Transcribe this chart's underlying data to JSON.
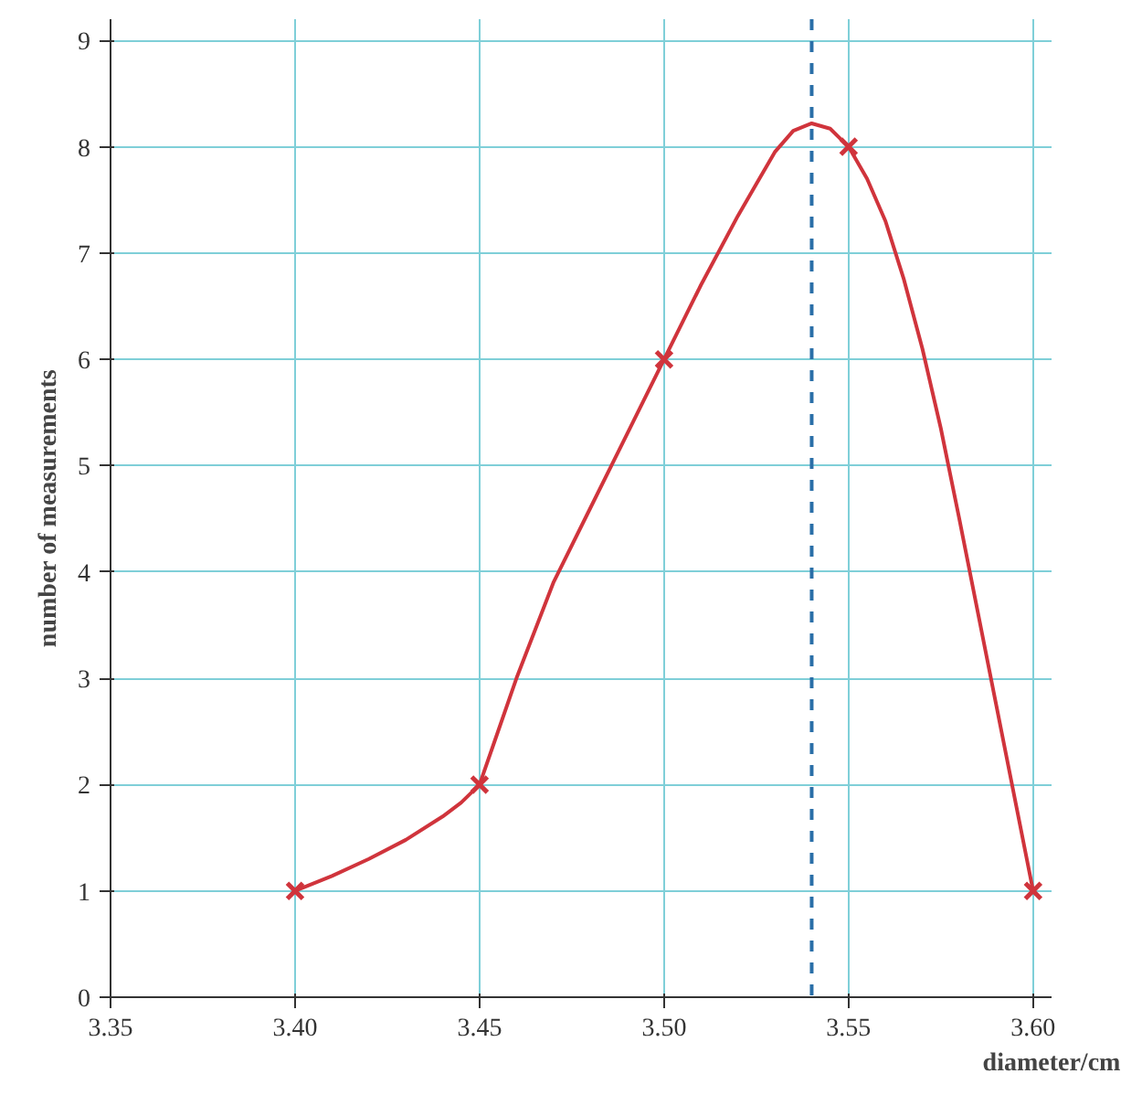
{
  "chart_data": {
    "type": "line",
    "xlabel": "diameter/cm",
    "ylabel": "number of measurements",
    "x": [
      3.4,
      3.45,
      3.5,
      3.55,
      3.6
    ],
    "series": [
      {
        "type": "scatter",
        "color": "#d0343c",
        "marker": "cross",
        "values": [
          1,
          2,
          6,
          8,
          1
        ]
      },
      {
        "color": "#d0343c",
        "x": [
          3.4,
          3.41,
          3.42,
          3.43,
          3.44,
          3.445,
          3.45,
          3.455,
          3.46,
          3.47,
          3.48,
          3.49,
          3.5,
          3.51,
          3.52,
          3.525,
          3.53,
          3.535,
          3.54,
          3.545,
          3.55,
          3.555,
          3.56,
          3.565,
          3.57,
          3.575,
          3.58,
          3.59,
          3.6
        ],
        "values": [
          1,
          1.14,
          1.3,
          1.48,
          1.7,
          1.83,
          2,
          2.5,
          3.0,
          3.9,
          4.6,
          5.3,
          6,
          6.7,
          7.35,
          7.65,
          7.95,
          8.15,
          8.22,
          8.17,
          8.0,
          7.7,
          7.3,
          6.75,
          6.1,
          5.35,
          4.5,
          2.75,
          1
        ]
      }
    ],
    "ref_lines": [
      {
        "axis": "x",
        "value": 3.54,
        "color": "#2a6fa8",
        "line_style": "dashed"
      }
    ],
    "xlim": [
      3.35,
      3.605
    ],
    "ylim": [
      0,
      9.2
    ],
    "xticks": [
      3.35,
      {
        "value": 3.4,
        "label": "3.40"
      },
      3.45,
      {
        "value": 3.5,
        "label": "3.50"
      },
      3.55,
      {
        "value": 3.6,
        "label": "3.60"
      }
    ],
    "yticks": [
      0,
      1,
      2,
      3,
      4,
      5,
      6,
      7,
      8,
      9
    ],
    "grid": true
  }
}
